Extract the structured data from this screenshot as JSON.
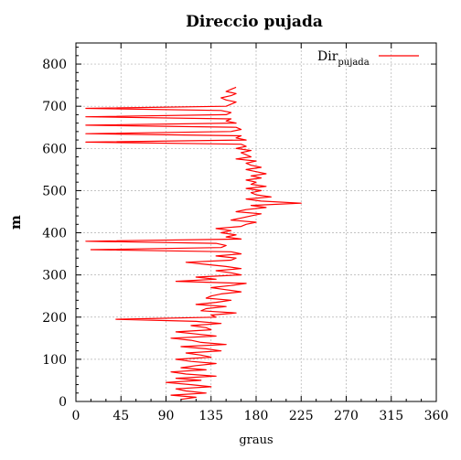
{
  "chart_data": {
    "type": "line",
    "title": "Direccio pujada",
    "xlabel": "graus",
    "ylabel": "m",
    "xlim": [
      0,
      360
    ],
    "ylim": [
      0,
      850
    ],
    "xticks": [
      0,
      45,
      90,
      135,
      180,
      225,
      270,
      315,
      360
    ],
    "yticks": [
      0,
      100,
      200,
      300,
      400,
      500,
      600,
      700,
      800
    ],
    "grid": true,
    "legend_position": "top-right",
    "series": [
      {
        "name": "Dir",
        "name_subscript": "pujada",
        "color": "#ff0000",
        "x": [
          105,
          120,
          95,
          130,
          110,
          100,
          135,
          115,
          90,
          125,
          100,
          140,
          110,
          95,
          130,
          105,
          120,
          140,
          115,
          100,
          135,
          125,
          110,
          145,
          130,
          105,
          150,
          125,
          115,
          95,
          140,
          120,
          100,
          135,
          130,
          115,
          145,
          120,
          40,
          140,
          135,
          160,
          125,
          130,
          150,
          120,
          140,
          155,
          130,
          135,
          145,
          165,
          150,
          135,
          155,
          170,
          100,
          140,
          120,
          165,
          155,
          140,
          165,
          150,
          130,
          110,
          155,
          160,
          140,
          165,
          155,
          15,
          145,
          150,
          140,
          10,
          165,
          150,
          160,
          145,
          155,
          140,
          165,
          170,
          180,
          155,
          165,
          175,
          185,
          160,
          170,
          190,
          175,
          225,
          185,
          170,
          195,
          180,
          175,
          185,
          170,
          190,
          175,
          180,
          170,
          185,
          175,
          190,
          180,
          170,
          185,
          175,
          170,
          180,
          160,
          175,
          170,
          165,
          175,
          160,
          170,
          165,
          10,
          170,
          160,
          165,
          10,
          155,
          165,
          160,
          10,
          160,
          150,
          155,
          10,
          150,
          155,
          145,
          10,
          150,
          155,
          160,
          150,
          145,
          155,
          160,
          150,
          155,
          160
        ],
        "y": [
          5,
          10,
          15,
          20,
          25,
          30,
          35,
          40,
          45,
          50,
          55,
          60,
          65,
          70,
          75,
          80,
          85,
          90,
          95,
          100,
          105,
          110,
          115,
          120,
          125,
          130,
          135,
          140,
          145,
          150,
          155,
          160,
          165,
          170,
          175,
          180,
          185,
          190,
          195,
          200,
          205,
          210,
          215,
          220,
          225,
          230,
          235,
          240,
          245,
          250,
          255,
          260,
          265,
          270,
          275,
          280,
          285,
          290,
          295,
          300,
          305,
          310,
          315,
          320,
          325,
          330,
          335,
          340,
          345,
          350,
          355,
          360,
          365,
          370,
          375,
          380,
          385,
          390,
          395,
          400,
          405,
          410,
          415,
          420,
          425,
          430,
          435,
          440,
          445,
          450,
          455,
          460,
          465,
          470,
          475,
          480,
          485,
          490,
          495,
          500,
          505,
          510,
          515,
          520,
          525,
          530,
          535,
          540,
          545,
          550,
          555,
          560,
          565,
          570,
          575,
          580,
          585,
          590,
          595,
          600,
          605,
          610,
          615,
          620,
          625,
          630,
          635,
          640,
          645,
          650,
          655,
          660,
          665,
          670,
          675,
          680,
          685,
          690,
          695,
          700,
          705,
          710,
          715,
          720,
          725,
          730,
          735,
          740,
          745
        ]
      }
    ]
  }
}
